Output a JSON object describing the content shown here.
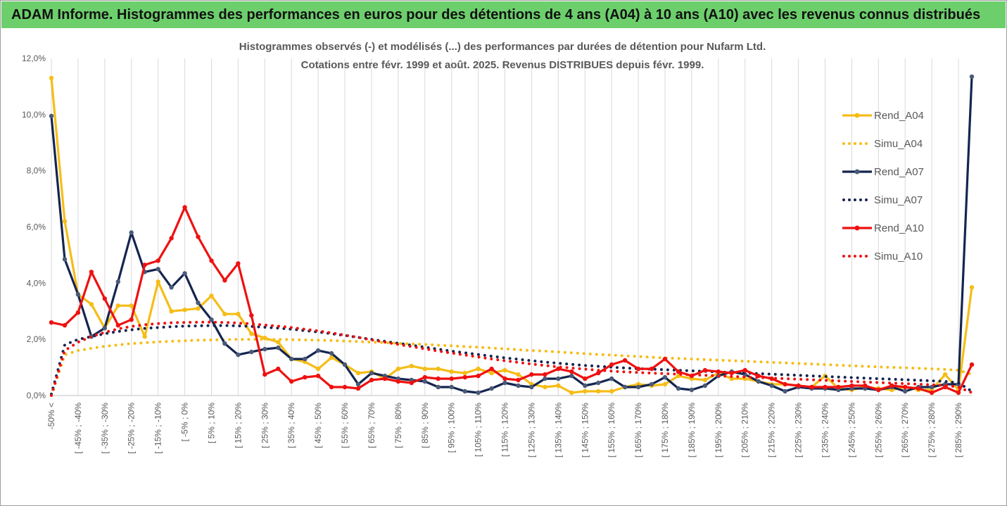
{
  "banner_title": "ADAM Informe. Histogrammes des performances en euros pour des détentions de 4 ans (A04) à 10 ans (A10) avec les revenus connus distribués",
  "colors": {
    "banner": "#6ccf6c",
    "A04": "#f5bd17",
    "A07": "#14254f",
    "A10": "#ee1111",
    "grid": "#d9d9d9",
    "text": "#595959"
  },
  "chart_data": {
    "type": "line",
    "title": [
      "Histogrammes observés (-) et modélisés (...) des performances par durées de détention pour Nufarm Ltd.",
      "Cotations entre févr. 1999 et août. 2025. Revenus DISTRIBUES depuis févr. 1999."
    ],
    "ylim": [
      0,
      12
    ],
    "y_ticks": [
      "0,0%",
      "2,0%",
      "4,0%",
      "6,0%",
      "8,0%",
      "10,0%",
      "12,0%"
    ],
    "grid": "vertical",
    "legend_position": "right",
    "x_labels": [
      "-50% <",
      "[ -45% ; -40%",
      "[ -35% ; -30%",
      "[ -25% ; -20%",
      "[ -15% ; -10%",
      "[ -5% ; 0%",
      "[ 5% ; 10%",
      "[ 15% ; 20%",
      "[ 25% ; 30%",
      "[ 35% ; 40%",
      "[ 45% ; 50%",
      "[ 55% ; 60%",
      "[ 65% ; 70%",
      "[ 75% ; 80%",
      "[ 85% ; 90%",
      "[ 95% ; 100%",
      "[ 105% ; 110%",
      "[ 115% ; 120%",
      "[ 125% ; 130%",
      "[ 135% ; 140%",
      "[ 145% ; 150%",
      "[ 155% ; 160%",
      "[ 165% ; 170%",
      "[ 175% ; 180%",
      "[ 185% ; 190%",
      "[ 195% ; 200%",
      "[ 205% ; 210%",
      "[ 215% ; 220%",
      "[ 225% ; 230%",
      "[ 235% ; 240%",
      "[ 245% ; 250%",
      "[ 255% ; 260%",
      "[ 265% ; 270%",
      "[ 275% ; 280%",
      "[ 285% ; 290%"
    ],
    "series": [
      {
        "name": "Rend_A04",
        "key": "A04",
        "style": "solid",
        "values": [
          11.3,
          6.2,
          3.6,
          3.25,
          2.4,
          3.2,
          3.2,
          2.1,
          4.05,
          3.0,
          3.05,
          3.1,
          3.55,
          2.9,
          2.9,
          2.2,
          2.05,
          1.9,
          1.3,
          1.2,
          0.95,
          1.35,
          1.1,
          0.8,
          0.85,
          0.6,
          0.95,
          1.05,
          0.95,
          0.95,
          0.85,
          0.8,
          0.95,
          0.8,
          0.9,
          0.75,
          0.4,
          0.3,
          0.35,
          0.1,
          0.15,
          0.15,
          0.15,
          0.3,
          0.4,
          0.35,
          0.4,
          0.7,
          0.6,
          0.55,
          0.8,
          0.6,
          0.6,
          0.5,
          0.4,
          0.4,
          0.35,
          0.3,
          0.7,
          0.25,
          0.2,
          0.3,
          0.25,
          0.2,
          0.3,
          0.2,
          0.2,
          0.75,
          0.2,
          3.85
        ]
      },
      {
        "name": "Simu_A04",
        "key": "A04",
        "style": "dotted",
        "values": [
          0.0,
          1.45,
          1.6,
          1.68,
          1.75,
          1.8,
          1.85,
          1.88,
          1.91,
          1.93,
          1.95,
          1.97,
          1.98,
          1.99,
          2.0,
          2.0,
          2.0,
          2.0,
          1.99,
          1.98,
          1.97,
          1.96,
          1.94,
          1.92,
          1.9,
          1.88,
          1.86,
          1.84,
          1.82,
          1.79,
          1.77,
          1.74,
          1.72,
          1.69,
          1.66,
          1.63,
          1.6,
          1.58,
          1.55,
          1.52,
          1.49,
          1.46,
          1.44,
          1.41,
          1.39,
          1.36,
          1.34,
          1.32,
          1.3,
          1.28,
          1.26,
          1.24,
          1.22,
          1.2,
          1.18,
          1.16,
          1.14,
          1.12,
          1.1,
          1.08,
          1.06,
          1.04,
          1.02,
          1.0,
          0.99,
          0.97,
          0.95,
          0.93,
          0.9,
          0.75
        ]
      },
      {
        "name": "Rend_A07",
        "key": "A07",
        "style": "solid",
        "values": [
          9.95,
          4.85,
          3.6,
          2.1,
          2.4,
          4.05,
          5.8,
          4.4,
          4.5,
          3.85,
          4.35,
          3.3,
          2.7,
          1.85,
          1.45,
          1.55,
          1.65,
          1.7,
          1.3,
          1.3,
          1.6,
          1.5,
          1.1,
          0.4,
          0.8,
          0.7,
          0.6,
          0.55,
          0.5,
          0.3,
          0.3,
          0.15,
          0.1,
          0.25,
          0.45,
          0.35,
          0.3,
          0.6,
          0.6,
          0.7,
          0.35,
          0.45,
          0.6,
          0.3,
          0.3,
          0.4,
          0.65,
          0.25,
          0.2,
          0.35,
          0.7,
          0.85,
          0.75,
          0.5,
          0.35,
          0.15,
          0.3,
          0.25,
          0.25,
          0.2,
          0.25,
          0.25,
          0.2,
          0.3,
          0.15,
          0.3,
          0.3,
          0.4,
          0.4,
          11.35
        ]
      },
      {
        "name": "Simu_A07",
        "key": "A07",
        "style": "dotted",
        "values": [
          0.05,
          1.8,
          2.0,
          2.1,
          2.2,
          2.28,
          2.34,
          2.39,
          2.42,
          2.45,
          2.47,
          2.48,
          2.49,
          2.49,
          2.48,
          2.46,
          2.43,
          2.4,
          2.36,
          2.31,
          2.26,
          2.2,
          2.14,
          2.07,
          2.0,
          1.93,
          1.86,
          1.79,
          1.72,
          1.65,
          1.58,
          1.52,
          1.46,
          1.4,
          1.34,
          1.29,
          1.24,
          1.19,
          1.15,
          1.11,
          1.07,
          1.04,
          1.01,
          0.98,
          0.96,
          0.94,
          0.92,
          0.9,
          0.88,
          0.86,
          0.84,
          0.82,
          0.8,
          0.78,
          0.76,
          0.74,
          0.72,
          0.7,
          0.68,
          0.66,
          0.64,
          0.62,
          0.6,
          0.58,
          0.56,
          0.54,
          0.52,
          0.5,
          0.45,
          0.15
        ]
      },
      {
        "name": "Rend_A10",
        "key": "A10",
        "style": "solid",
        "values": [
          2.6,
          2.5,
          2.95,
          4.4,
          3.45,
          2.5,
          2.7,
          4.65,
          4.8,
          5.6,
          6.7,
          5.65,
          4.8,
          4.1,
          4.7,
          2.85,
          0.75,
          0.95,
          0.5,
          0.65,
          0.7,
          0.3,
          0.3,
          0.25,
          0.55,
          0.6,
          0.5,
          0.45,
          0.65,
          0.6,
          0.6,
          0.65,
          0.7,
          0.95,
          0.6,
          0.55,
          0.75,
          0.75,
          0.95,
          0.85,
          0.6,
          0.8,
          1.1,
          1.25,
          0.95,
          0.95,
          1.3,
          0.85,
          0.7,
          0.9,
          0.85,
          0.8,
          0.9,
          0.7,
          0.6,
          0.4,
          0.35,
          0.3,
          0.3,
          0.3,
          0.35,
          0.35,
          0.2,
          0.35,
          0.3,
          0.25,
          0.1,
          0.3,
          0.1,
          1.1
        ]
      },
      {
        "name": "Simu_A10",
        "key": "A10",
        "style": "dotted",
        "values": [
          0.0,
          1.6,
          1.9,
          2.1,
          2.25,
          2.37,
          2.46,
          2.52,
          2.56,
          2.59,
          2.6,
          2.61,
          2.61,
          2.6,
          2.58,
          2.55,
          2.51,
          2.47,
          2.42,
          2.36,
          2.3,
          2.23,
          2.15,
          2.07,
          1.98,
          1.9,
          1.82,
          1.74,
          1.66,
          1.58,
          1.51,
          1.44,
          1.37,
          1.3,
          1.24,
          1.18,
          1.12,
          1.07,
          1.02,
          0.98,
          0.94,
          0.9,
          0.87,
          0.84,
          0.82,
          0.8,
          0.78,
          0.76,
          0.74,
          0.72,
          0.7,
          0.68,
          0.66,
          0.64,
          0.62,
          0.6,
          0.58,
          0.56,
          0.54,
          0.52,
          0.5,
          0.48,
          0.46,
          0.44,
          0.42,
          0.4,
          0.38,
          0.36,
          0.3,
          0.1
        ]
      }
    ]
  }
}
